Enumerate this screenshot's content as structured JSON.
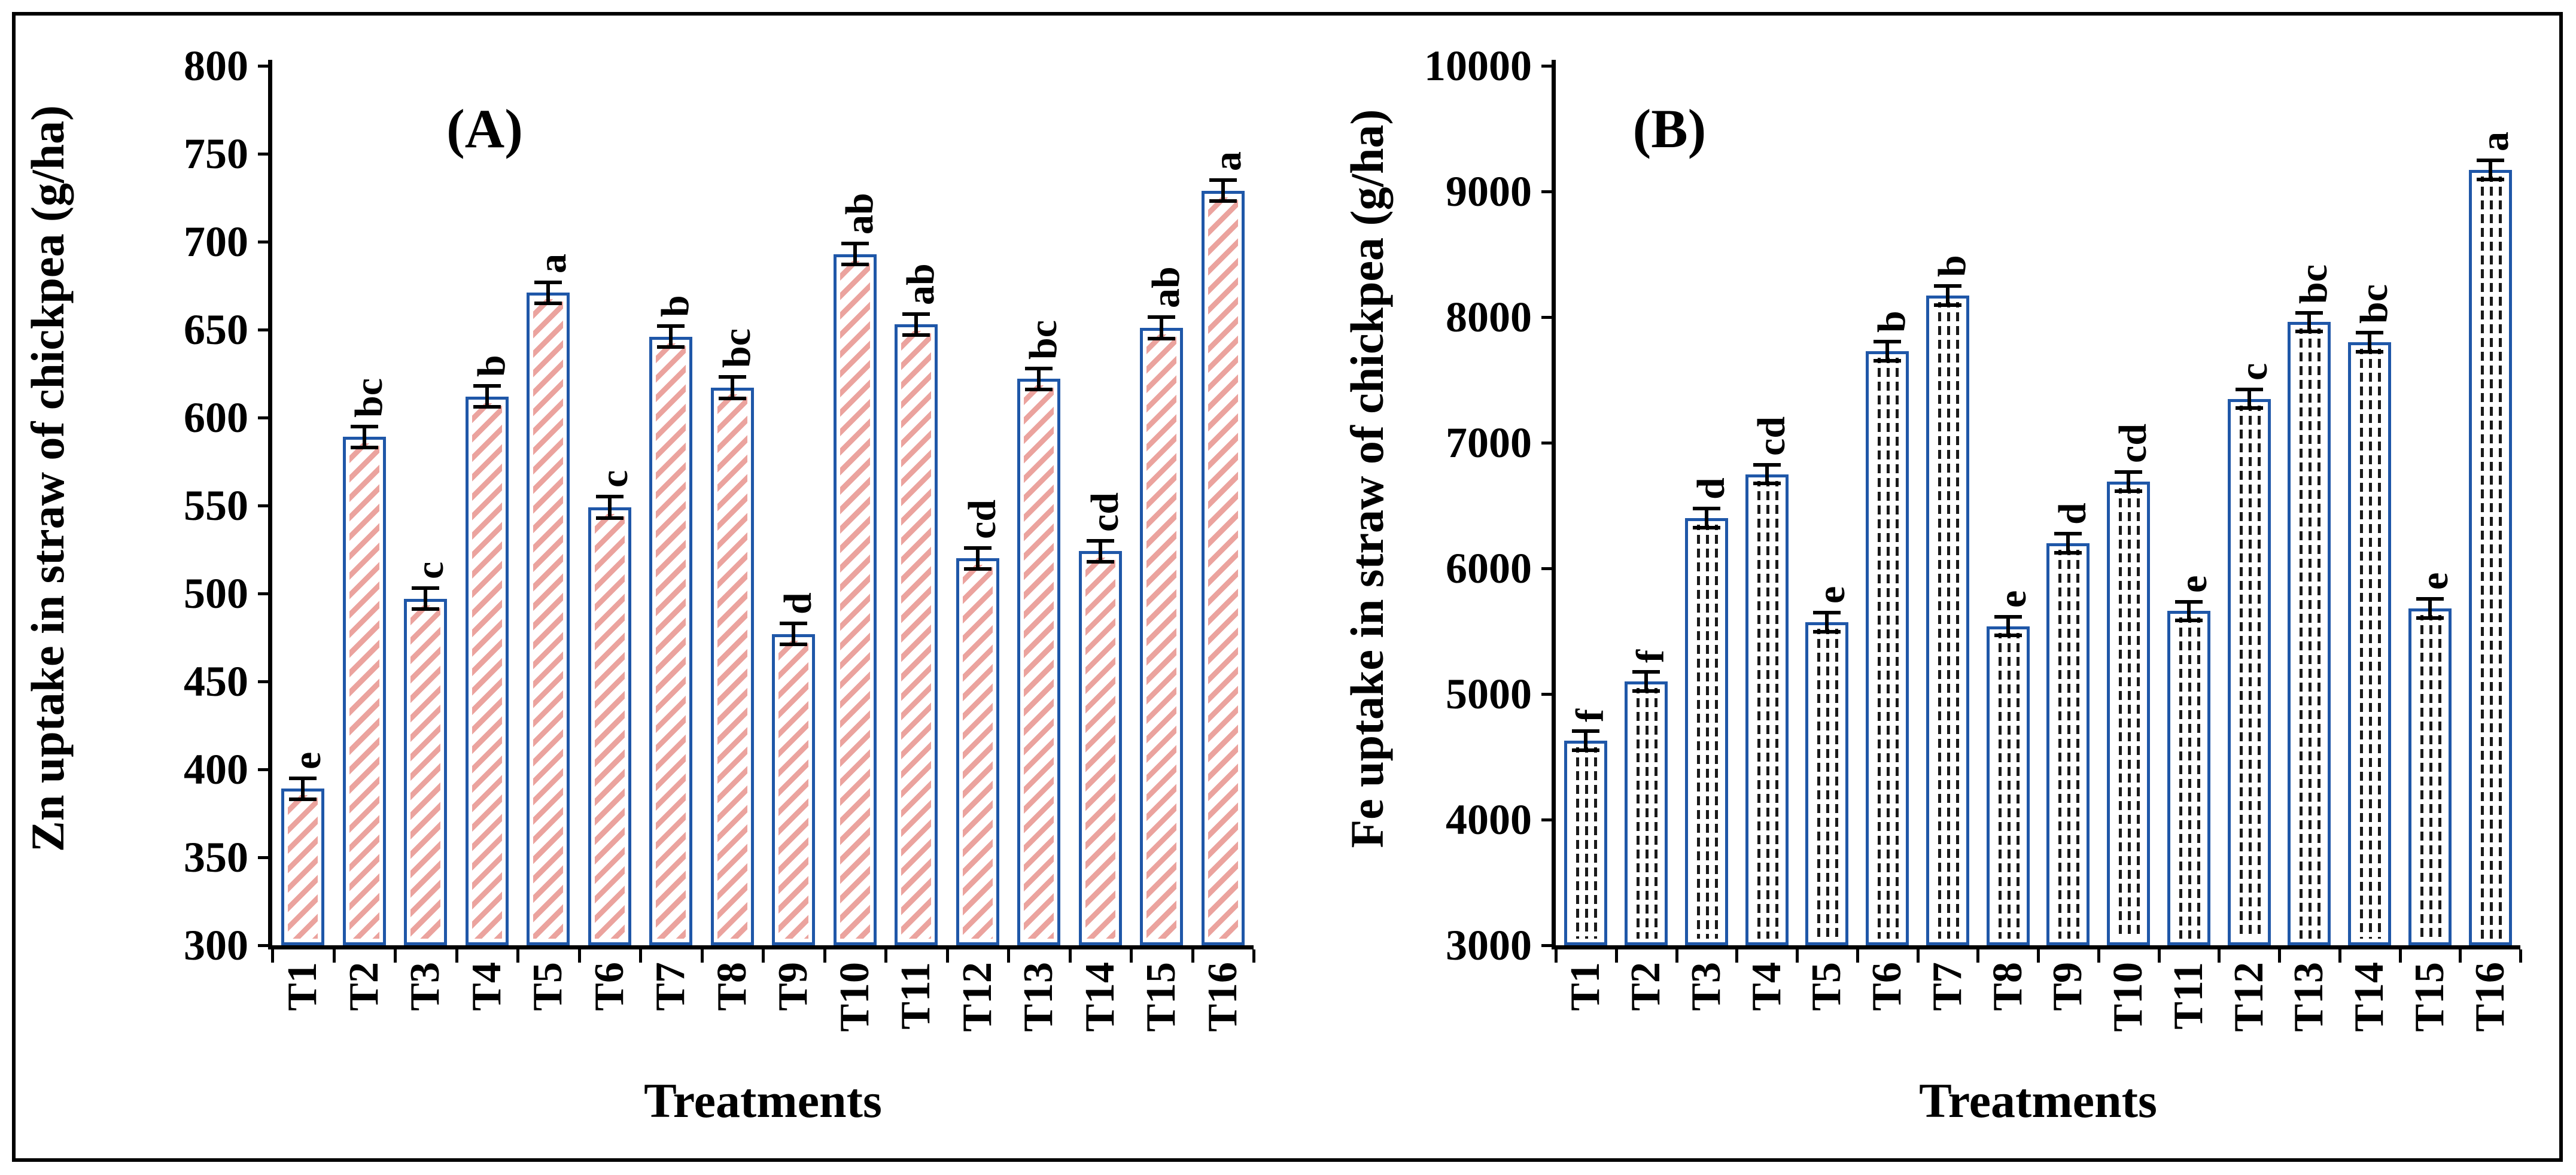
{
  "figure": {
    "background": "#ffffff",
    "border_color": "#000000"
  },
  "chart_data": [
    {
      "type": "bar",
      "panel_label": "(A)",
      "ylabel": "Zn uptake in straw of chickpea (g/ha)",
      "xlabel": "Treatments",
      "categories": [
        "T1",
        "T2",
        "T3",
        "T4",
        "T5",
        "T6",
        "T7",
        "T8",
        "T9",
        "T10",
        "T11",
        "T12",
        "T13",
        "T14",
        "T15",
        "T16"
      ],
      "values": [
        389,
        589,
        497,
        612,
        671,
        549,
        646,
        617,
        477,
        693,
        653,
        520,
        622,
        524,
        651,
        729
      ],
      "sig_letters": [
        "e",
        "bc",
        "c",
        "b",
        "a",
        "c",
        "b",
        "bc",
        "d",
        "ab",
        "ab",
        "cd",
        "bc",
        "cd",
        "ab",
        "a"
      ],
      "error_bar": 7,
      "ylim": [
        300,
        800
      ],
      "yticks": [
        300,
        350,
        400,
        450,
        500,
        550,
        600,
        650,
        700,
        750,
        800
      ],
      "grid": "off",
      "legend": "none",
      "bar_style": {
        "pattern": "diagonal-hatch",
        "border_color": "#1f57a8",
        "hatch_color": "#eba39e"
      }
    },
    {
      "type": "bar",
      "panel_label": "(B)",
      "ylabel": "Fe uptake in straw of chickpea (g/ha)",
      "xlabel": "Treatments",
      "categories": [
        "T1",
        "T2",
        "T3",
        "T4",
        "T5",
        "T6",
        "T7",
        "T8",
        "T9",
        "T10",
        "T11",
        "T12",
        "T13",
        "T14",
        "T15",
        "T16"
      ],
      "values": [
        4630,
        5100,
        6400,
        6750,
        5570,
        7730,
        8170,
        5540,
        6200,
        6690,
        5660,
        7350,
        7960,
        7800,
        5680,
        9170
      ],
      "sig_letters": [
        "f",
        "f",
        "d",
        "cd",
        "e",
        "b",
        "b",
        "e",
        "d",
        "cd",
        "e",
        "c",
        "bc",
        "bc",
        "e",
        "a"
      ],
      "error_bar": 90,
      "ylim": [
        3000,
        10000
      ],
      "yticks": [
        3000,
        4000,
        5000,
        6000,
        7000,
        8000,
        9000,
        10000
      ],
      "grid": "off",
      "legend": "none",
      "bar_style": {
        "pattern": "dotted",
        "border_color": "#1f57a8",
        "dot_color": "#1a1a1a"
      }
    }
  ]
}
